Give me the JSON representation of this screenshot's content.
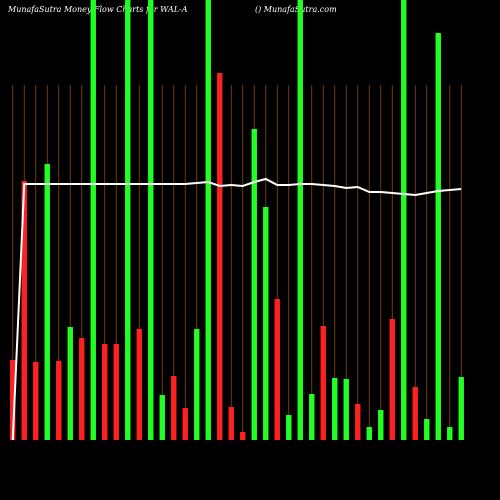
{
  "chart_data": {
    "type": "bar",
    "title": "MunafaSutra  Money Flow  Charts for WAL-A",
    "subtitle": "() MunafaSutra.com",
    "categories": [
      null,
      null,
      null,
      null,
      null,
      null,
      null,
      null,
      null,
      null,
      null,
      null,
      null,
      null,
      null,
      null,
      null,
      null,
      null,
      null,
      null,
      null,
      null,
      null,
      null,
      null,
      null,
      null,
      null,
      null,
      null,
      null,
      null,
      null,
      null,
      null,
      null,
      null,
      null,
      null
    ],
    "series": [
      {
        "type": "bar",
        "values": [
          80,
          259,
          78,
          276,
          79,
          113,
          102,
          440,
          96,
          96,
          440,
          111,
          440,
          45,
          64,
          32,
          111,
          440,
          367,
          33,
          8,
          311,
          233,
          141,
          25,
          440,
          46,
          114,
          62,
          61,
          36,
          13,
          30,
          121,
          440,
          53,
          21,
          407,
          13,
          63
        ],
        "colors": [
          "#ff2020",
          "#ff2020",
          "#ff2020",
          "#22ff22",
          "#ff2020",
          "#22ff22",
          "#ff2020",
          "#22ff22",
          "#ff2020",
          "#ff2020",
          "#22ff22",
          "#ff2020",
          "#22ff22",
          "#22ff22",
          "#ff2020",
          "#ff2020",
          "#22ff22",
          "#22ff22",
          "#ff2020",
          "#ff2020",
          "#ff2020",
          "#22ff22",
          "#22ff22",
          "#ff2020",
          "#22ff22",
          "#22ff22",
          "#22ff22",
          "#ff2020",
          "#22ff22",
          "#22ff22",
          "#ff2020",
          "#22ff22",
          "#22ff22",
          "#ff2020",
          "#22ff22",
          "#ff2020",
          "#22ff22",
          "#22ff22",
          "#22ff22",
          "#22ff22"
        ]
      },
      {
        "type": "line",
        "color": "#ffffff",
        "values": [
          0,
          256,
          256,
          256,
          256,
          256,
          256,
          256,
          256,
          256,
          256,
          256,
          256,
          256,
          256,
          256,
          257,
          258,
          254,
          255,
          254,
          258,
          261,
          255,
          255,
          256,
          256,
          255,
          254,
          252,
          253,
          248,
          248,
          247,
          246,
          245,
          247,
          249,
          250,
          251
        ]
      }
    ],
    "ylim": [
      0,
      440
    ],
    "grid": true,
    "grid_color": "#8a4a10",
    "background": "#000000"
  }
}
